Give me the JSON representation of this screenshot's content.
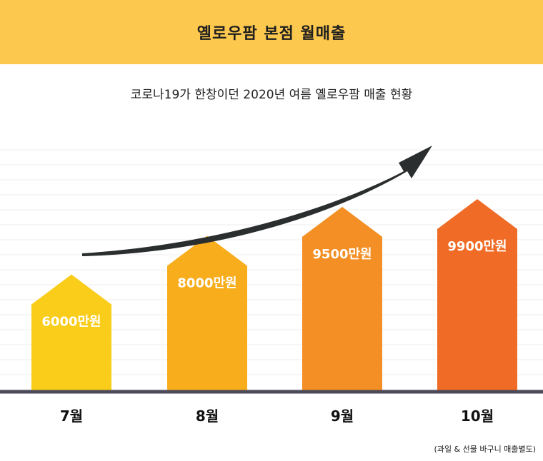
{
  "header": {
    "title": "옐로우팜 본점 월매출"
  },
  "subtitle": "코로나19가 한창이던 2020년 여름 옐로우팜 매출 현황",
  "note": "(과일 & 선물 바구니 매출별도)",
  "colors": {
    "header_bg": "#fcc84e",
    "bars": [
      "#f9cd1a",
      "#f8ad1c",
      "#f38f24",
      "#f06b25"
    ],
    "arrow": "#2b2e2e",
    "baseline": "#4a4a5a",
    "grid": "#ececec"
  },
  "chart_data": {
    "type": "bar",
    "categories": [
      "7월",
      "8월",
      "9월",
      "10월"
    ],
    "values": [
      6000,
      8000,
      9500,
      9900
    ],
    "labels": [
      "6000만원",
      "8000만원",
      "9500만원",
      "9900만원"
    ],
    "unit": "만원",
    "trend_arrow": "up",
    "grid": true
  }
}
